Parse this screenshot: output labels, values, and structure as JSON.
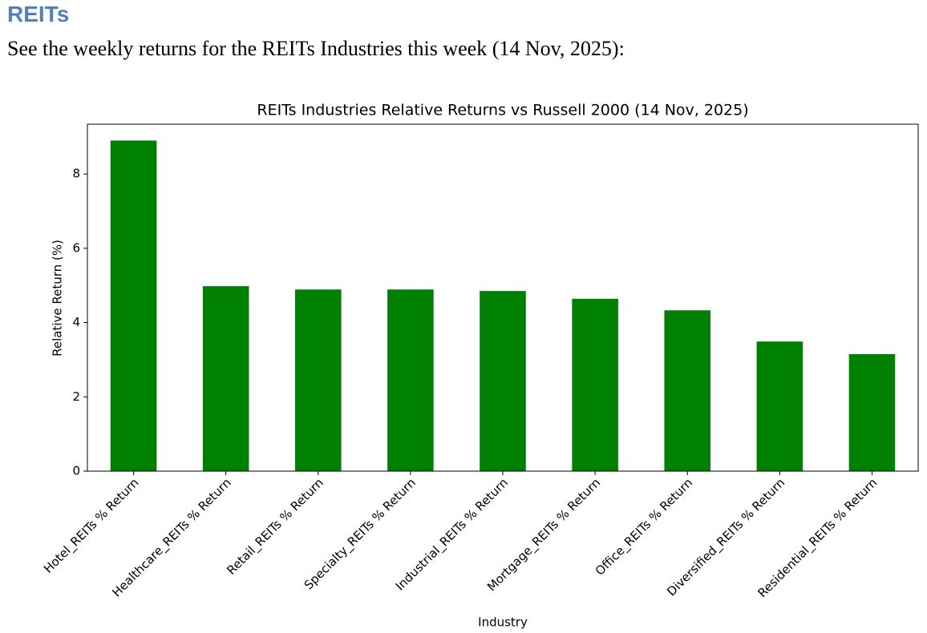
{
  "heading": "REITs",
  "intro": "See the weekly returns for the REITs Industries this week (14 Nov, 2025):",
  "chart_data": {
    "type": "bar",
    "title": "REITs Industries Relative Returns vs Russell 2000 (14 Nov, 2025)",
    "x_label": "Industry",
    "y_label": "Relative Return (%)",
    "categories": [
      "Hotel_REITs % Return",
      "Healthcare_REITs % Return",
      "Retail_REITs % Return",
      "Specialty_REITs % Return",
      "Industrial_REITs % Return",
      "Mortgage_REITs % Return",
      "Office_REITs % Return",
      "Diversified_REITs % Return",
      "Residential_REITs % Return"
    ],
    "values": [
      8.9,
      4.98,
      4.89,
      4.89,
      4.85,
      4.64,
      4.33,
      3.49,
      3.15
    ],
    "color": "#008000",
    "ylim": [
      0,
      9.34
    ],
    "yticks": [
      0,
      2,
      4,
      6,
      8
    ],
    "grid": false
  }
}
